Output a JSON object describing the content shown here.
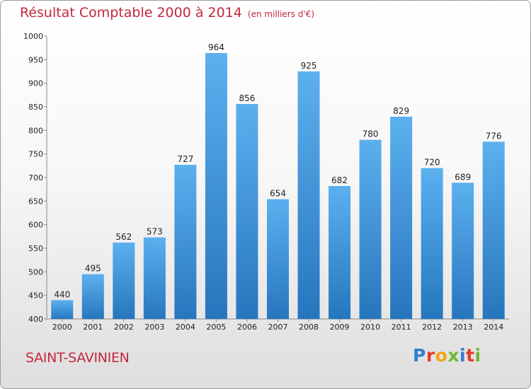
{
  "chart_data": {
    "type": "bar",
    "title": "Résultat Comptable 2000 à 2014",
    "subtitle": "(en milliers d'€)",
    "xlabel": "",
    "ylabel": "",
    "categories": [
      "2000",
      "2001",
      "2002",
      "2003",
      "2004",
      "2005",
      "2006",
      "2007",
      "2008",
      "2009",
      "2010",
      "2011",
      "2012",
      "2013",
      "2014"
    ],
    "values": [
      440,
      495,
      562,
      573,
      727,
      964,
      856,
      654,
      925,
      682,
      780,
      829,
      720,
      689,
      776
    ],
    "ylim": [
      400,
      1000
    ],
    "yticks": [
      400,
      450,
      500,
      550,
      600,
      650,
      700,
      750,
      800,
      850,
      900,
      950,
      1000
    ],
    "grid": false,
    "legend": "none",
    "bar_color": "#3a8fd6"
  },
  "footer": {
    "commune": "SAINT-SAVINIEN",
    "brand": "Proxiti",
    "brand_colors": [
      "#2f7fd0",
      "#e63a2e",
      "#f2a516",
      "#6fb631",
      "#2f7fd0",
      "#e63a2e",
      "#6fb631"
    ]
  }
}
